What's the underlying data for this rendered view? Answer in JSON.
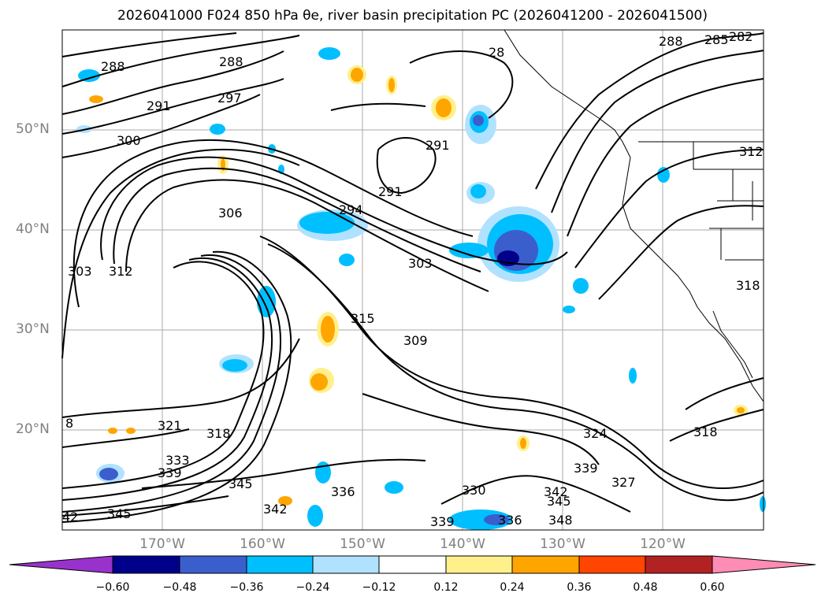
{
  "title": "2026041000 F024 850 hPa θe, river basin precipitation PC (2026041200 - 2026041500)",
  "lat_labels": [
    "50°N",
    "40°N",
    "30°N",
    "20°N"
  ],
  "lon_labels": [
    "170°W",
    "160°W",
    "150°W",
    "140°W",
    "130°W",
    "120°W"
  ],
  "contour_labels": [
    "288",
    "288",
    "297",
    "291",
    "300",
    "306",
    "294",
    "291",
    "291",
    "303",
    "303",
    "312",
    "315",
    "309",
    "321",
    "318",
    "333",
    "339",
    "345",
    "345",
    "342",
    "336",
    "330",
    "339",
    "336",
    "348",
    "342",
    "345",
    "339",
    "327",
    "324",
    "318",
    "318",
    "312",
    "288",
    "285",
    "282",
    "28",
    "8",
    "42"
  ],
  "colorbar": {
    "tick_labels": [
      "−0.60",
      "−0.48",
      "−0.36",
      "−0.24",
      "−0.12",
      "0.12",
      "0.24",
      "0.36",
      "0.48",
      "0.60"
    ],
    "colors": [
      "#9932cc",
      "#00008b",
      "#3a5fcd",
      "#00bfff",
      "#b0e2ff",
      "#ffffff",
      "#fff08c",
      "#ffa500",
      "#ff4500",
      "#b22222",
      "#ff8cb4"
    ]
  }
}
